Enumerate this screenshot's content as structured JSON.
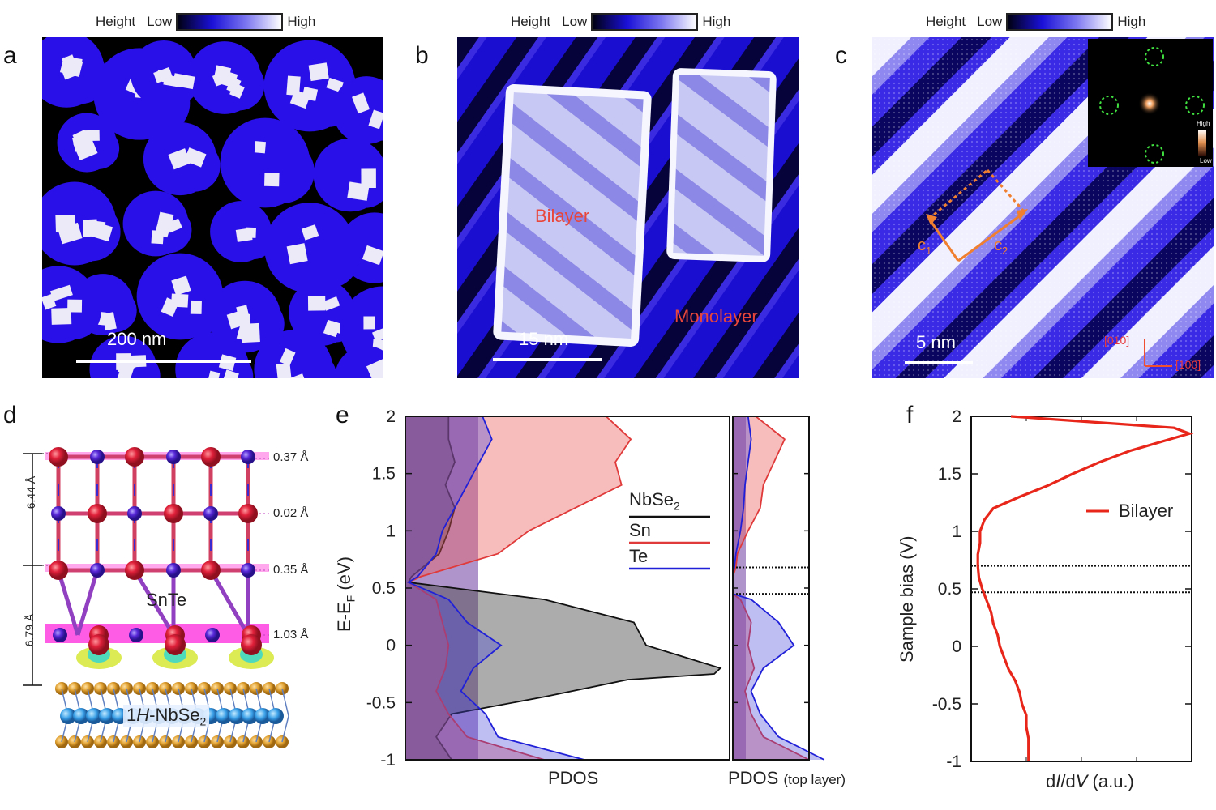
{
  "panels": {
    "a": "a",
    "b": "b",
    "c": "c",
    "d": "d",
    "e": "e",
    "f": "f"
  },
  "colorbar": {
    "title": "Height",
    "low": "Low",
    "high": "High"
  },
  "panel_a": {
    "scale": "200 nm"
  },
  "panel_b": {
    "scale": "15 nm",
    "bilayer": "Bilayer",
    "monolayer": "Monolayer"
  },
  "panel_c": {
    "scale": "5 nm",
    "c1": "c",
    "c1sub": "1",
    "c2": "c",
    "c2sub": "2",
    "dir_010": "[010]",
    "dir_100": "[100]",
    "inset_high": "High",
    "inset_low": "Low"
  },
  "panel_d": {
    "dim_top": "6.44 Å",
    "dim_bottom": "6.79 Å",
    "d1": "0.37 Å",
    "d2": "0.02 Å",
    "d3": "0.35 Å",
    "d4": "1.03 Å",
    "snte": "SnTe",
    "substrate_a": "1",
    "substrate_b": "H",
    "substrate_c": "-NbSe",
    "substrate_sub": "2"
  },
  "panel_e": {
    "ylabel_a": "E-E",
    "ylabel_sub": "F",
    "ylabel_b": " (eV)",
    "yticks": [
      "2",
      "1.5",
      "1",
      "0.5",
      "0",
      "-0.5",
      "-1"
    ],
    "xlabel_main": "PDOS",
    "xlabel_top": "PDOS",
    "xlabel_top_note": "(top layer)",
    "legend": [
      {
        "name": "NbSe",
        "sub": "2",
        "color": "#111111"
      },
      {
        "name": "Sn",
        "sub": "",
        "color": "#e03a3a"
      },
      {
        "name": "Te",
        "sub": "",
        "color": "#2020d8"
      }
    ]
  },
  "panel_f": {
    "ylabel": "Sample bias (V)",
    "yticks": [
      "2",
      "1.5",
      "1",
      "0.5",
      "0",
      "-0.5",
      "-1"
    ],
    "xlabel_a": "d",
    "xlabel_b": "I",
    "xlabel_c": "/d",
    "xlabel_d": "V",
    "xlabel_e": " (a.u.)",
    "legend": "Bilayer",
    "color": "#e8261a"
  },
  "chart_data": [
    {
      "type": "area",
      "panel": "e",
      "ylim": [
        -1,
        2
      ],
      "dashed_lines_top_layer": [
        0.68,
        0.45
      ],
      "series": [
        {
          "name": "NbSe2",
          "y": [
            2.0,
            1.8,
            1.6,
            1.4,
            1.2,
            1.0,
            0.8,
            0.6,
            0.55,
            0.4,
            0.2,
            0.0,
            -0.2,
            -0.25,
            -0.3,
            -0.45,
            -0.6,
            -0.8,
            -1.0
          ],
          "values": [
            0.14,
            0.14,
            0.16,
            0.13,
            0.16,
            0.14,
            0.11,
            0.02,
            0.01,
            0.45,
            0.74,
            0.78,
            1.02,
            1.0,
            0.72,
            0.45,
            0.15,
            0.1,
            0.15
          ]
        },
        {
          "name": "Sn",
          "y": [
            2.0,
            1.8,
            1.6,
            1.4,
            1.2,
            1.0,
            0.8,
            0.6,
            0.55,
            0.4,
            0.2,
            0.0,
            -0.2,
            -0.4,
            -0.6,
            -0.8,
            -1.0
          ],
          "values": [
            0.65,
            0.73,
            0.68,
            0.7,
            0.55,
            0.4,
            0.3,
            0.05,
            0.01,
            0.1,
            0.12,
            0.14,
            0.13,
            0.1,
            0.14,
            0.2,
            0.45
          ]
        },
        {
          "name": "Te",
          "y": [
            2.0,
            1.8,
            1.6,
            1.4,
            1.2,
            1.0,
            0.8,
            0.6,
            0.55,
            0.4,
            0.2,
            0.0,
            -0.2,
            -0.4,
            -0.6,
            -0.8,
            -1.0
          ],
          "values": [
            0.25,
            0.28,
            0.24,
            0.2,
            0.16,
            0.12,
            0.1,
            0.04,
            0.01,
            0.14,
            0.2,
            0.31,
            0.22,
            0.18,
            0.26,
            0.3,
            0.58
          ]
        }
      ]
    },
    {
      "type": "area",
      "panel": "e-top-layer",
      "ylim": [
        -1,
        2
      ],
      "series": [
        {
          "name": "Sn",
          "y": [
            2.0,
            1.8,
            1.6,
            1.4,
            1.2,
            1.0,
            0.8,
            0.68,
            0.6,
            0.45,
            0.4,
            0.2,
            0.0,
            -0.2,
            -0.4,
            -0.6,
            -0.8,
            -1.0
          ],
          "values": [
            0.15,
            0.34,
            0.27,
            0.2,
            0.18,
            0.1,
            0.03,
            0.02,
            0.0,
            0.0,
            0.05,
            0.12,
            0.1,
            0.14,
            0.08,
            0.12,
            0.2,
            0.5
          ]
        },
        {
          "name": "Te",
          "y": [
            2.0,
            1.8,
            1.6,
            1.4,
            1.2,
            1.0,
            0.8,
            0.68,
            0.6,
            0.45,
            0.4,
            0.2,
            0.0,
            -0.2,
            -0.4,
            -0.6,
            -0.8,
            -1.0
          ],
          "values": [
            0.1,
            0.12,
            0.1,
            0.08,
            0.07,
            0.05,
            0.02,
            0.01,
            0.0,
            0.0,
            0.12,
            0.3,
            0.4,
            0.2,
            0.12,
            0.18,
            0.3,
            0.6
          ]
        }
      ]
    },
    {
      "type": "line",
      "panel": "f",
      "ylim": [
        -1,
        2
      ],
      "dashed_lines": [
        0.7,
        0.47
      ],
      "series": [
        {
          "name": "Bilayer",
          "y": [
            2.0,
            1.95,
            1.9,
            1.85,
            1.8,
            1.7,
            1.6,
            1.5,
            1.4,
            1.3,
            1.2,
            1.1,
            1.0,
            0.9,
            0.8,
            0.7,
            0.6,
            0.5,
            0.4,
            0.3,
            0.2,
            0.1,
            0.0,
            -0.1,
            -0.2,
            -0.3,
            -0.4,
            -0.5,
            -0.6,
            -0.7,
            -0.8,
            -0.9,
            -1.0
          ],
          "values": [
            0.18,
            0.55,
            0.92,
            0.99,
            0.9,
            0.72,
            0.58,
            0.46,
            0.35,
            0.22,
            0.1,
            0.06,
            0.04,
            0.04,
            0.03,
            0.03,
            0.035,
            0.05,
            0.07,
            0.09,
            0.1,
            0.12,
            0.13,
            0.15,
            0.17,
            0.2,
            0.22,
            0.23,
            0.25,
            0.25,
            0.26,
            0.26,
            0.26
          ]
        }
      ]
    }
  ]
}
